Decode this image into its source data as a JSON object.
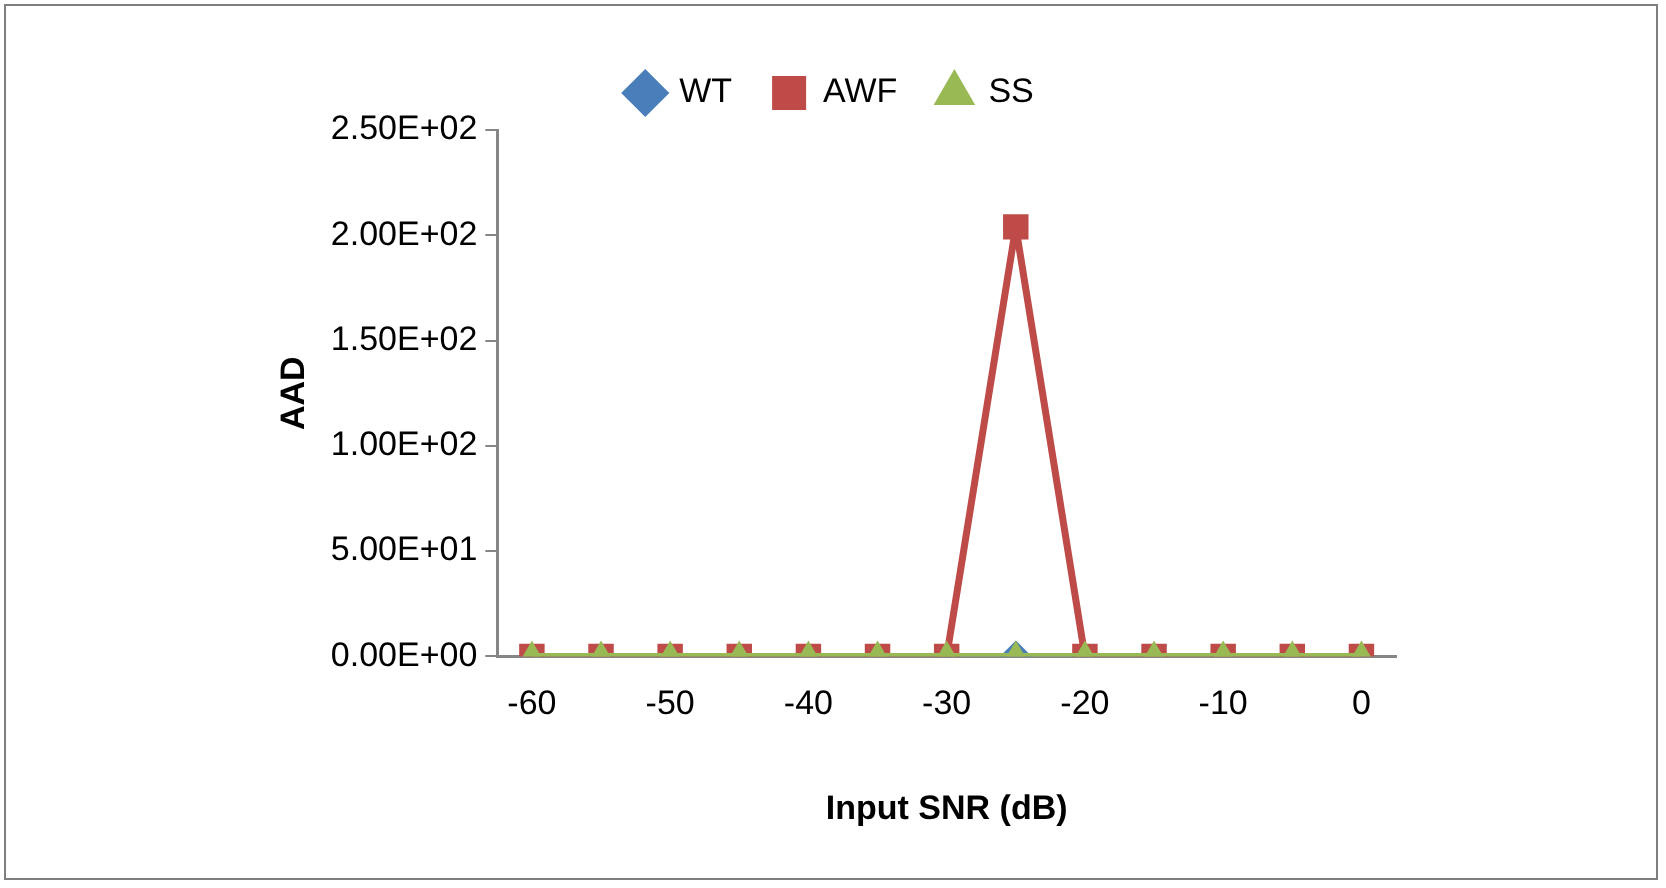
{
  "chart_data": {
    "type": "line",
    "xlabel": "Input SNR (dB)",
    "ylabel": "AAD",
    "x": [
      -60,
      -55,
      -50,
      -45,
      -40,
      -35,
      -30,
      -25,
      -20,
      -15,
      -10,
      -5,
      0
    ],
    "series": [
      {
        "name": "WT",
        "color": "#4a7ebb",
        "marker": "diamond",
        "values": [
          null,
          null,
          null,
          null,
          null,
          null,
          null,
          0,
          null,
          null,
          null,
          null,
          null
        ]
      },
      {
        "name": "AWF",
        "color": "#be4b48",
        "marker": "square",
        "values": [
          0,
          0,
          0,
          0,
          0,
          0,
          0,
          204,
          0,
          0,
          0,
          0,
          0
        ]
      },
      {
        "name": "SS",
        "color": "#98b954",
        "marker": "triangle",
        "values": [
          0,
          0,
          0,
          0,
          0,
          0,
          0,
          0,
          0,
          0,
          0,
          0,
          0
        ]
      }
    ],
    "xlim": [
      -62.5,
      2.5
    ],
    "xticks": [
      -60,
      -50,
      -40,
      -30,
      -20,
      -10,
      0
    ],
    "ylim": [
      0,
      250
    ],
    "yticks": [
      {
        "value": 0,
        "label": "0.00E+00"
      },
      {
        "value": 50,
        "label": "5.00E+01"
      },
      {
        "value": 100,
        "label": "1.00E+02"
      },
      {
        "value": 150,
        "label": "1.50E+02"
      },
      {
        "value": 200,
        "label": "2.00E+02"
      },
      {
        "value": 250,
        "label": "2.50E+02"
      }
    ],
    "grid": false,
    "legend": "top"
  }
}
